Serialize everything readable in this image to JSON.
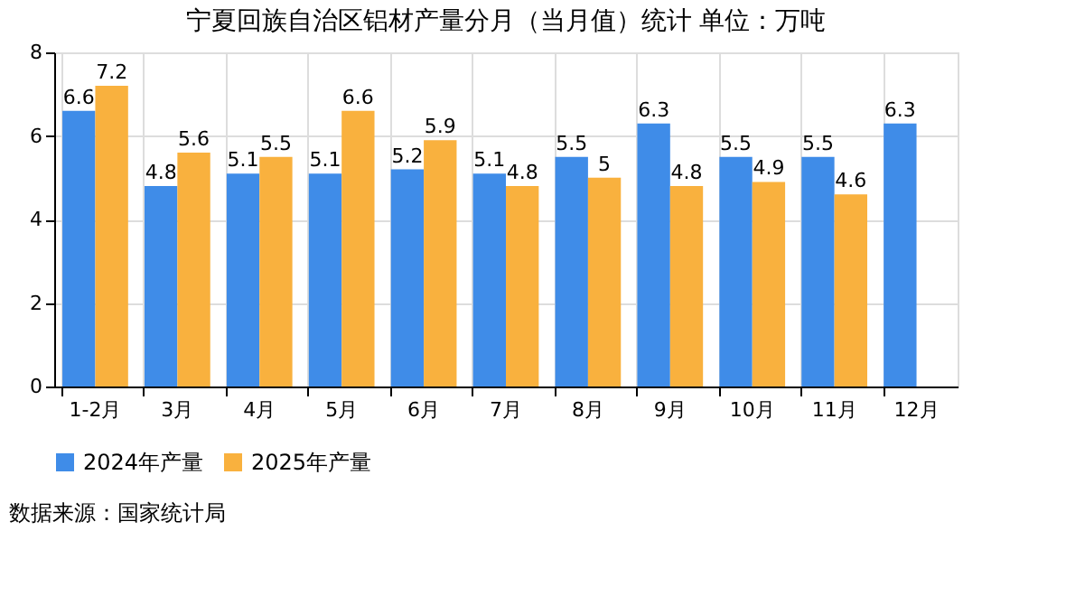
{
  "chart_data": {
    "type": "bar",
    "title": "宁夏回族自治区铝材产量分月（当月值）统计 单位：万吨",
    "categories": [
      "1-2月",
      "3月",
      "4月",
      "5月",
      "6月",
      "7月",
      "8月",
      "9月",
      "10月",
      "11月",
      "12月"
    ],
    "series": [
      {
        "name": "2024年产量",
        "color": "#3f8ce8",
        "values": [
          6.6,
          4.8,
          5.1,
          5.1,
          5.2,
          5.1,
          5.5,
          6.3,
          5.5,
          5.5,
          6.3
        ]
      },
      {
        "name": "2025年产量",
        "color": "#f9b13e",
        "values": [
          7.2,
          5.6,
          5.5,
          6.6,
          5.9,
          4.8,
          5,
          4.8,
          4.9,
          4.6,
          null
        ]
      }
    ],
    "ylim": [
      0,
      8
    ],
    "yticks": [
      0,
      2,
      4,
      6,
      8
    ],
    "grid": true,
    "legend": "bottom",
    "data_labels": true,
    "annotations": [
      "数据来源：国家统计局"
    ]
  }
}
